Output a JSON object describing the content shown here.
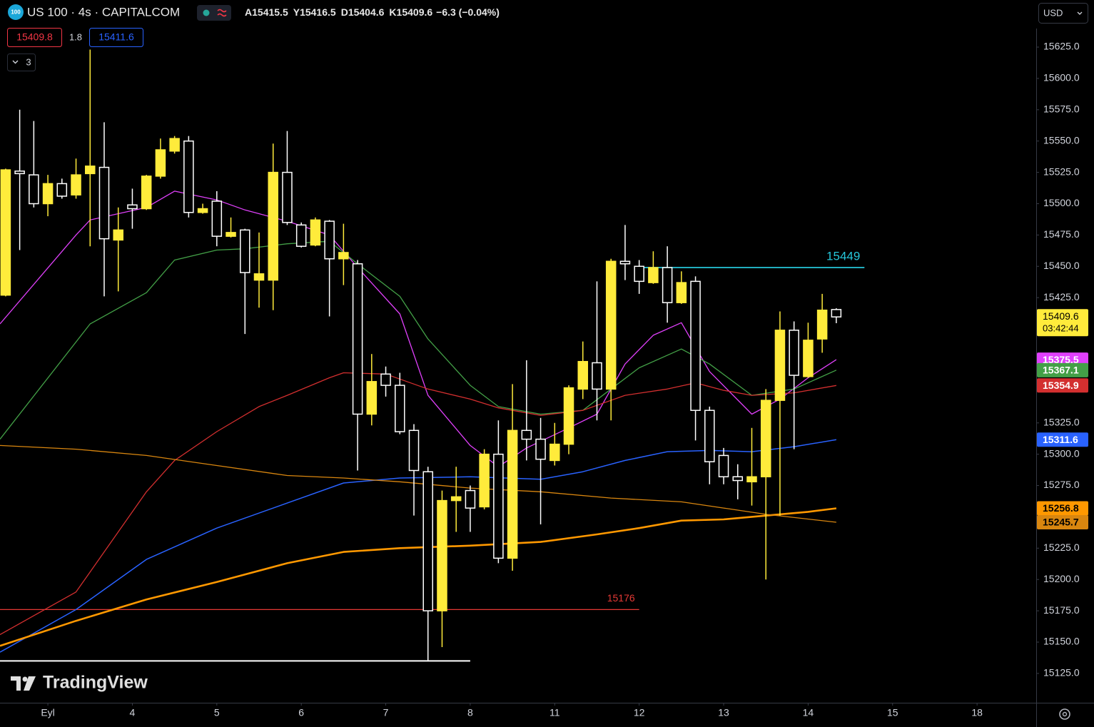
{
  "chart_data": {
    "type": "candlestick",
    "logo": "100",
    "title": "US 100 · 4s · CAPITALCOM",
    "ohlc_labels": [
      "A",
      "Y",
      "D",
      "K"
    ],
    "change": "−6.3 (−0.04%)",
    "bid": 15409.8,
    "spread": 1.8,
    "ask": 15411.6,
    "indicator_count": 3,
    "currency": "USD",
    "countdown": "03:42:44",
    "watermark": "TradingView",
    "up_color": "#ffeb3b",
    "down_color": "#ffffff",
    "x": [
      0,
      1,
      2,
      3,
      4,
      5,
      6,
      7,
      8,
      9,
      10,
      11,
      12,
      13,
      14,
      15,
      16,
      17,
      18,
      19,
      20,
      21,
      22,
      23,
      24,
      25,
      26,
      27,
      28,
      29,
      30,
      31,
      32,
      33,
      34,
      35,
      36,
      37,
      38,
      39,
      40,
      41,
      42,
      43,
      44,
      45,
      46,
      47,
      48,
      49,
      50,
      51,
      52,
      53,
      54,
      55,
      56,
      57,
      58,
      59
    ],
    "open": [
      15427,
      15526,
      15523,
      15500,
      15516,
      15507,
      15524,
      15529,
      15471,
      15499,
      15496,
      15522,
      15542,
      15550,
      15493,
      15502,
      15474,
      15479,
      15439,
      15439,
      15525,
      15483,
      15467,
      15486,
      15456,
      15452,
      15332,
      15364,
      15355,
      15319,
      15286,
      15175,
      15263,
      15271,
      15258,
      15300,
      15217,
      15319,
      15312,
      15295,
      15308,
      15352,
      15373,
      15352,
      15454,
      15450,
      15437,
      15449,
      15421,
      15438,
      15335,
      15299,
      15282,
      15278,
      15282,
      15343,
      15399,
      15362,
      15392,
      15415.5
    ],
    "high": [
      15528,
      15575,
      15566,
      15523,
      15520,
      15536,
      15623,
      15565,
      15497,
      15512,
      15523,
      15552,
      15554,
      15554,
      15500,
      15510,
      15489,
      15480,
      15477,
      15548,
      15558,
      15485,
      15489,
      15487,
      15484,
      15455,
      15380,
      15370,
      15365,
      15324,
      15290,
      15271,
      15290,
      15275,
      15304,
      15327,
      15356,
      15375,
      15329,
      15325,
      15355,
      15390,
      15438,
      15456,
      15483,
      15455,
      15462,
      15466,
      15446,
      15442,
      15338,
      15305,
      15292,
      15321,
      15352,
      15414,
      15406,
      15405,
      15428,
      15416.5
    ],
    "low": [
      15426,
      15463,
      15497,
      15490,
      15504,
      15504,
      15466,
      15426,
      15430,
      15480,
      15495,
      15520,
      15540,
      15489,
      15492,
      15466,
      15473,
      15396,
      15417,
      15415,
      15483,
      15465,
      15466,
      15410,
      15435,
      15287,
      15323,
      15346,
      15316,
      15251,
      15135,
      15146,
      15238,
      15238,
      15256,
      15213,
      15207,
      15295,
      15244,
      15291,
      15300,
      15344,
      15327,
      15327,
      15439,
      15428,
      15436,
      15405,
      15420,
      15311,
      15276,
      15276,
      15264,
      15259,
      15200,
      15251,
      15304,
      15361,
      15381,
      15404.6
    ],
    "close": [
      15527,
      15524,
      15500,
      15516,
      15506,
      15523,
      15530,
      15472,
      15479,
      15496,
      15522,
      15543,
      15552,
      15493,
      15496,
      15474,
      15477,
      15445,
      15444,
      15525,
      15485,
      15466,
      15487,
      15456,
      15461,
      15332,
      15358,
      15355,
      15318,
      15287,
      15175,
      15263,
      15266,
      15257,
      15300,
      15217,
      15319,
      15312,
      15296,
      15308,
      15353,
      15374,
      15352,
      15454,
      15452,
      15438,
      15449,
      15421,
      15437,
      15335,
      15294,
      15282,
      15279,
      15282,
      15343,
      15399,
      15363,
      15391,
      15415,
      15409.6
    ],
    "series": [
      {
        "color": "#e040fb",
        "label_color": "#ffffff",
        "width": 1.3,
        "x": [
          -0.4,
          5,
          6,
          10,
          12,
          15,
          17,
          20,
          23,
          25,
          28,
          30,
          33,
          35,
          37,
          40,
          42,
          44,
          46,
          48,
          50,
          53,
          55,
          57,
          59
        ],
        "values": [
          15404,
          15475,
          15487,
          15497,
          15510,
          15503,
          15495,
          15486,
          15475,
          15449,
          15412,
          15347,
          15307,
          15290,
          15305,
          15321,
          15332,
          15372,
          15395,
          15405,
          15366,
          15332,
          15344,
          15361,
          15375.5
        ]
      },
      {
        "color": "#43a047",
        "label_color": "#ffffff",
        "width": 1.3,
        "x": [
          -0.4,
          6,
          10,
          12,
          15,
          17,
          20,
          23,
          25,
          28,
          30,
          33,
          35,
          38,
          41,
          43,
          45,
          48,
          50,
          53,
          56,
          59
        ],
        "values": [
          15312,
          15404,
          15429,
          15455,
          15463,
          15464,
          15468,
          15470,
          15452,
          15426,
          15392,
          15355,
          15338,
          15332,
          15335,
          15352,
          15369,
          15384,
          15372,
          15347,
          15352,
          15367.1
        ]
      },
      {
        "color": "#d32f2f",
        "label_color": "#ffffff",
        "width": 1.3,
        "x": [
          -0.4,
          5,
          10,
          12,
          15,
          18,
          20,
          23,
          24,
          27,
          30,
          33,
          35,
          38,
          41,
          44,
          47,
          49,
          51,
          53,
          56,
          59
        ],
        "values": [
          15156,
          15190,
          15270,
          15295,
          15318,
          15338,
          15347,
          15361,
          15365,
          15364,
          15352,
          15344,
          15337,
          15331,
          15335,
          15347,
          15352,
          15357,
          15351,
          15347,
          15349,
          15354.9
        ]
      },
      {
        "color": "#2962ff",
        "label_color": "#ffffff",
        "width": 1.5,
        "x": [
          -0.4,
          5,
          10,
          15,
          20,
          24,
          28,
          33,
          38,
          41,
          44,
          47,
          50,
          53,
          56,
          59
        ],
        "values": [
          15142,
          15176,
          15216,
          15241,
          15261,
          15277,
          15281,
          15282,
          15280,
          15286,
          15295,
          15302,
          15303,
          15302,
          15306,
          15311.6
        ]
      },
      {
        "color": "#ff9800",
        "label_color": "#000000",
        "width": 2.6,
        "x": [
          -0.4,
          5,
          10,
          15,
          20,
          24,
          28,
          33,
          38,
          42,
          45,
          48,
          51,
          54,
          57,
          59
        ],
        "values": [
          15147,
          15167,
          15184,
          15198,
          15213,
          15222,
          15225,
          15227,
          15230,
          15236,
          15241,
          15247,
          15248,
          15251,
          15254,
          15256.8
        ]
      },
      {
        "color": "#d9860f",
        "label_color": "#000000",
        "width": 1.3,
        "x": [
          -0.4,
          5,
          10,
          15,
          20,
          24,
          28,
          33,
          38,
          43,
          48,
          51,
          54,
          59
        ],
        "values": [
          15307,
          15304,
          15299,
          15291,
          15283,
          15281,
          15278,
          15273,
          15270,
          15265,
          15262,
          15257,
          15252,
          15245.7
        ]
      }
    ],
    "levels": [
      {
        "value": 15449,
        "color": "#26c6da",
        "from": 45,
        "to": 61
      },
      {
        "value": 15176,
        "color": "#e53935",
        "from": -0.4,
        "to": 45
      }
    ],
    "rays": [
      {
        "value": 15135,
        "color": "#ffffff",
        "from": -0.4,
        "to": 33
      }
    ],
    "xlim": [
      -0.4,
      73.2
    ],
    "ylim": [
      15101.6,
      15662.6
    ],
    "xticks": [
      {
        "value": 3,
        "label": "Eyl"
      },
      {
        "value": 9,
        "label": "4"
      },
      {
        "value": 15,
        "label": "5"
      },
      {
        "value": 21,
        "label": "6"
      },
      {
        "value": 27,
        "label": "7"
      },
      {
        "value": 33,
        "label": "8"
      },
      {
        "value": 39,
        "label": "11"
      },
      {
        "value": 45,
        "label": "12"
      },
      {
        "value": 51,
        "label": "13"
      },
      {
        "value": 57,
        "label": "14"
      },
      {
        "value": 63,
        "label": "15"
      },
      {
        "value": 69,
        "label": "18"
      }
    ],
    "yticks": [
      {
        "value": 15625,
        "label": "15625.0"
      },
      {
        "value": 15600,
        "label": "15600.0"
      },
      {
        "value": 15575,
        "label": "15575.0"
      },
      {
        "value": 15550,
        "label": "15550.0"
      },
      {
        "value": 15525,
        "label": "15525.0"
      },
      {
        "value": 15500,
        "label": "15500.0"
      },
      {
        "value": 15475,
        "label": "15475.0"
      },
      {
        "value": 15450,
        "label": "15450.0"
      },
      {
        "value": 15425,
        "label": "15425.0"
      },
      {
        "value": 15325,
        "label": "15325.0"
      },
      {
        "value": 15300,
        "label": "15300.0"
      },
      {
        "value": 15275,
        "label": "15275.0"
      },
      {
        "value": 15225,
        "label": "15225.0"
      },
      {
        "value": 15200,
        "label": "15200.0"
      },
      {
        "value": 15175,
        "label": "15175.0"
      },
      {
        "value": 15150,
        "label": "15150.0"
      },
      {
        "value": 15125,
        "label": "15125.0"
      }
    ],
    "grid": false
  }
}
